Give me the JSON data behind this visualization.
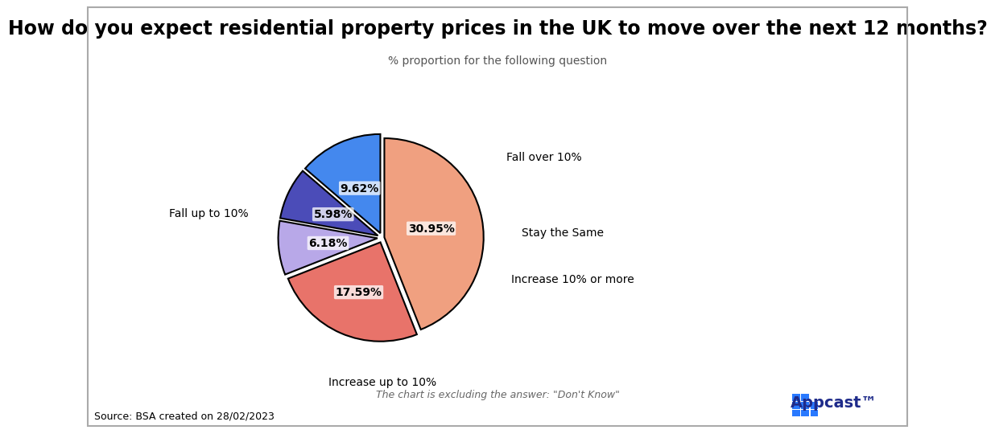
{
  "title": "How do you expect residential property prices in the UK to move over the next 12 months?",
  "subtitle": "% proportion for the following question",
  "footnote": "The chart is excluding the answer: \"Don't Know\"",
  "source": "Source: BSA created on 28/02/2023",
  "labels": [
    "Fall up to 10%",
    "Fall over 10%",
    "Stay the Same",
    "Increase 10% or more",
    "Increase up to 10%"
  ],
  "values": [
    30.95,
    17.59,
    6.18,
    5.98,
    9.62
  ],
  "colors": [
    "#F0A080",
    "#E8736A",
    "#B8A8E8",
    "#4B4CB8",
    "#4488EE"
  ],
  "pct_labels": [
    "30.95%",
    "17.59%",
    "6.18%",
    "5.98%",
    "9.62%"
  ],
  "explode": [
    0.02,
    0.05,
    0.05,
    0.05,
    0.05
  ],
  "startangle": 90,
  "background_color": "#FFFFFF",
  "title_fontsize": 17,
  "subtitle_fontsize": 10,
  "label_fontsize": 10,
  "pct_fontsize": 10,
  "appcast_text_color": "#1E2B8A",
  "appcast_blue": "#2979FF"
}
